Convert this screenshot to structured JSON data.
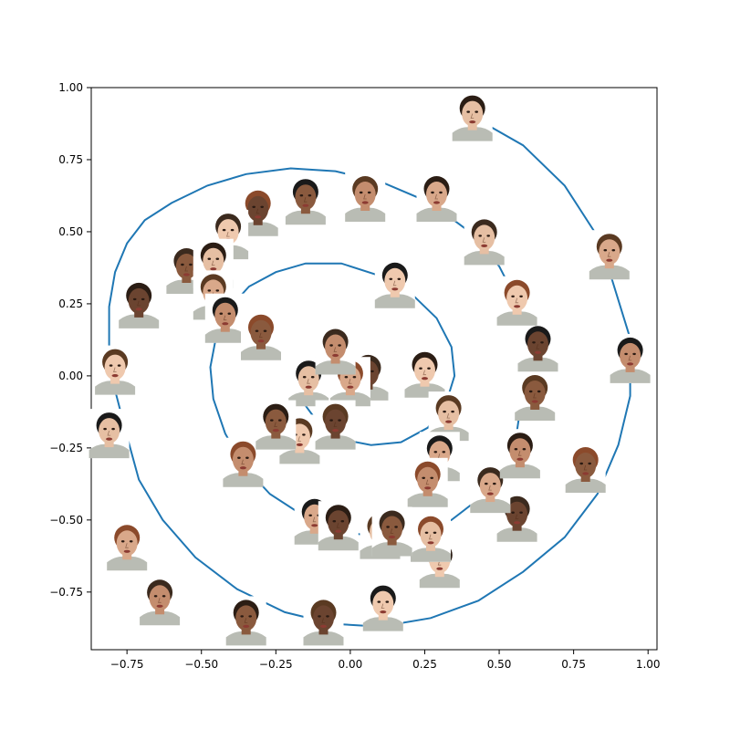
{
  "chart_data": {
    "type": "line",
    "title": "",
    "xlabel": "",
    "ylabel": "",
    "xlim": [
      -0.87,
      1.03
    ],
    "ylim": [
      -0.95,
      1.0
    ],
    "grid": false,
    "legend": "none",
    "line_color": "#1f77b4",
    "x_ticks": [
      -0.75,
      -0.5,
      -0.25,
      0.0,
      0.25,
      0.5,
      0.75,
      1.0
    ],
    "x_tick_labels": [
      "−0.75",
      "−0.50",
      "−0.25",
      "0.00",
      "0.25",
      "0.50",
      "0.75",
      "1.00"
    ],
    "y_ticks": [
      -0.75,
      -0.5,
      -0.25,
      0.0,
      0.25,
      0.5,
      0.75,
      1.0
    ],
    "y_tick_labels": [
      "−0.75",
      "−0.50",
      "−0.25",
      "0.00",
      "0.25",
      "0.50",
      "0.75",
      "1.00"
    ],
    "spiral": {
      "x": [
        0.41,
        0.58,
        0.72,
        0.82,
        0.88,
        0.94,
        0.94,
        0.9,
        0.83,
        0.72,
        0.58,
        0.43,
        0.27,
        0.1,
        -0.06,
        -0.22,
        -0.38,
        -0.52,
        -0.63,
        -0.71,
        -0.75,
        -0.79,
        -0.81,
        -0.81,
        -0.79,
        -0.75,
        -0.69,
        -0.6,
        -0.48,
        -0.35,
        -0.2,
        -0.05,
        0.11,
        0.27,
        0.4,
        0.5,
        0.57,
        0.58,
        0.58,
        0.56,
        0.52,
        0.44,
        0.34,
        0.22,
        0.1,
        -0.03,
        -0.15,
        -0.27,
        -0.36,
        -0.42,
        -0.46,
        -0.47,
        -0.45,
        -0.41,
        -0.34,
        -0.25,
        -0.15,
        -0.03,
        0.09,
        0.2,
        0.29,
        0.34,
        0.35,
        0.32,
        0.26,
        0.17,
        0.07,
        -0.03,
        -0.11,
        -0.16,
        -0.17,
        -0.14,
        -0.08,
        0.0,
        0.07
      ],
      "y": [
        0.9,
        0.8,
        0.66,
        0.5,
        0.33,
        0.13,
        -0.07,
        -0.24,
        -0.41,
        -0.56,
        -0.68,
        -0.78,
        -0.84,
        -0.87,
        -0.86,
        -0.82,
        -0.74,
        -0.63,
        -0.5,
        -0.36,
        -0.21,
        -0.05,
        0.1,
        0.24,
        0.36,
        0.46,
        0.54,
        0.6,
        0.66,
        0.7,
        0.72,
        0.71,
        0.67,
        0.6,
        0.5,
        0.38,
        0.24,
        0.1,
        -0.05,
        -0.19,
        -0.31,
        -0.42,
        -0.5,
        -0.55,
        -0.56,
        -0.54,
        -0.49,
        -0.41,
        -0.31,
        -0.2,
        -0.08,
        0.03,
        0.14,
        0.23,
        0.31,
        0.36,
        0.39,
        0.39,
        0.35,
        0.29,
        0.2,
        0.1,
        0.0,
        -0.1,
        -0.18,
        -0.23,
        -0.24,
        -0.22,
        -0.16,
        -0.09,
        -0.01,
        0.05,
        0.08,
        0.07,
        0.03
      ]
    },
    "faces": {
      "x": [
        0.41,
        0.87,
        0.94,
        0.79,
        0.56,
        0.3,
        0.1,
        -0.12,
        -0.36,
        -0.55,
        -0.71,
        -0.79,
        -0.81,
        -0.75,
        -0.64,
        -0.35,
        -0.09,
        0.11,
        0.27,
        0.47,
        0.57,
        0.62,
        0.63,
        0.56,
        0.45,
        0.29,
        0.05,
        -0.15,
        -0.31,
        -0.41,
        -0.46,
        -0.46,
        -0.42,
        -0.3,
        0.06,
        0.25,
        0.33,
        0.3,
        0.26,
        0.14,
        -0.04,
        -0.17,
        -0.14,
        0.0,
        -0.05,
        -0.25,
        -0.05,
        0.15
      ],
      "y": [
        0.9,
        0.42,
        0.06,
        -0.32,
        -0.49,
        -0.65,
        -0.55,
        -0.5,
        -0.3,
        0.37,
        0.25,
        0.02,
        -0.2,
        -0.59,
        -0.78,
        -0.85,
        -0.85,
        -0.8,
        -0.56,
        -0.39,
        -0.27,
        -0.07,
        0.1,
        0.26,
        0.47,
        0.62,
        0.62,
        0.61,
        0.57,
        0.49,
        0.39,
        0.28,
        0.2,
        0.14,
        0.0,
        0.01,
        -0.14,
        -0.28,
        -0.37,
        -0.54,
        -0.52,
        -0.22,
        -0.02,
        -0.02,
        0.09,
        -0.17,
        -0.17,
        0.32
      ]
    }
  }
}
